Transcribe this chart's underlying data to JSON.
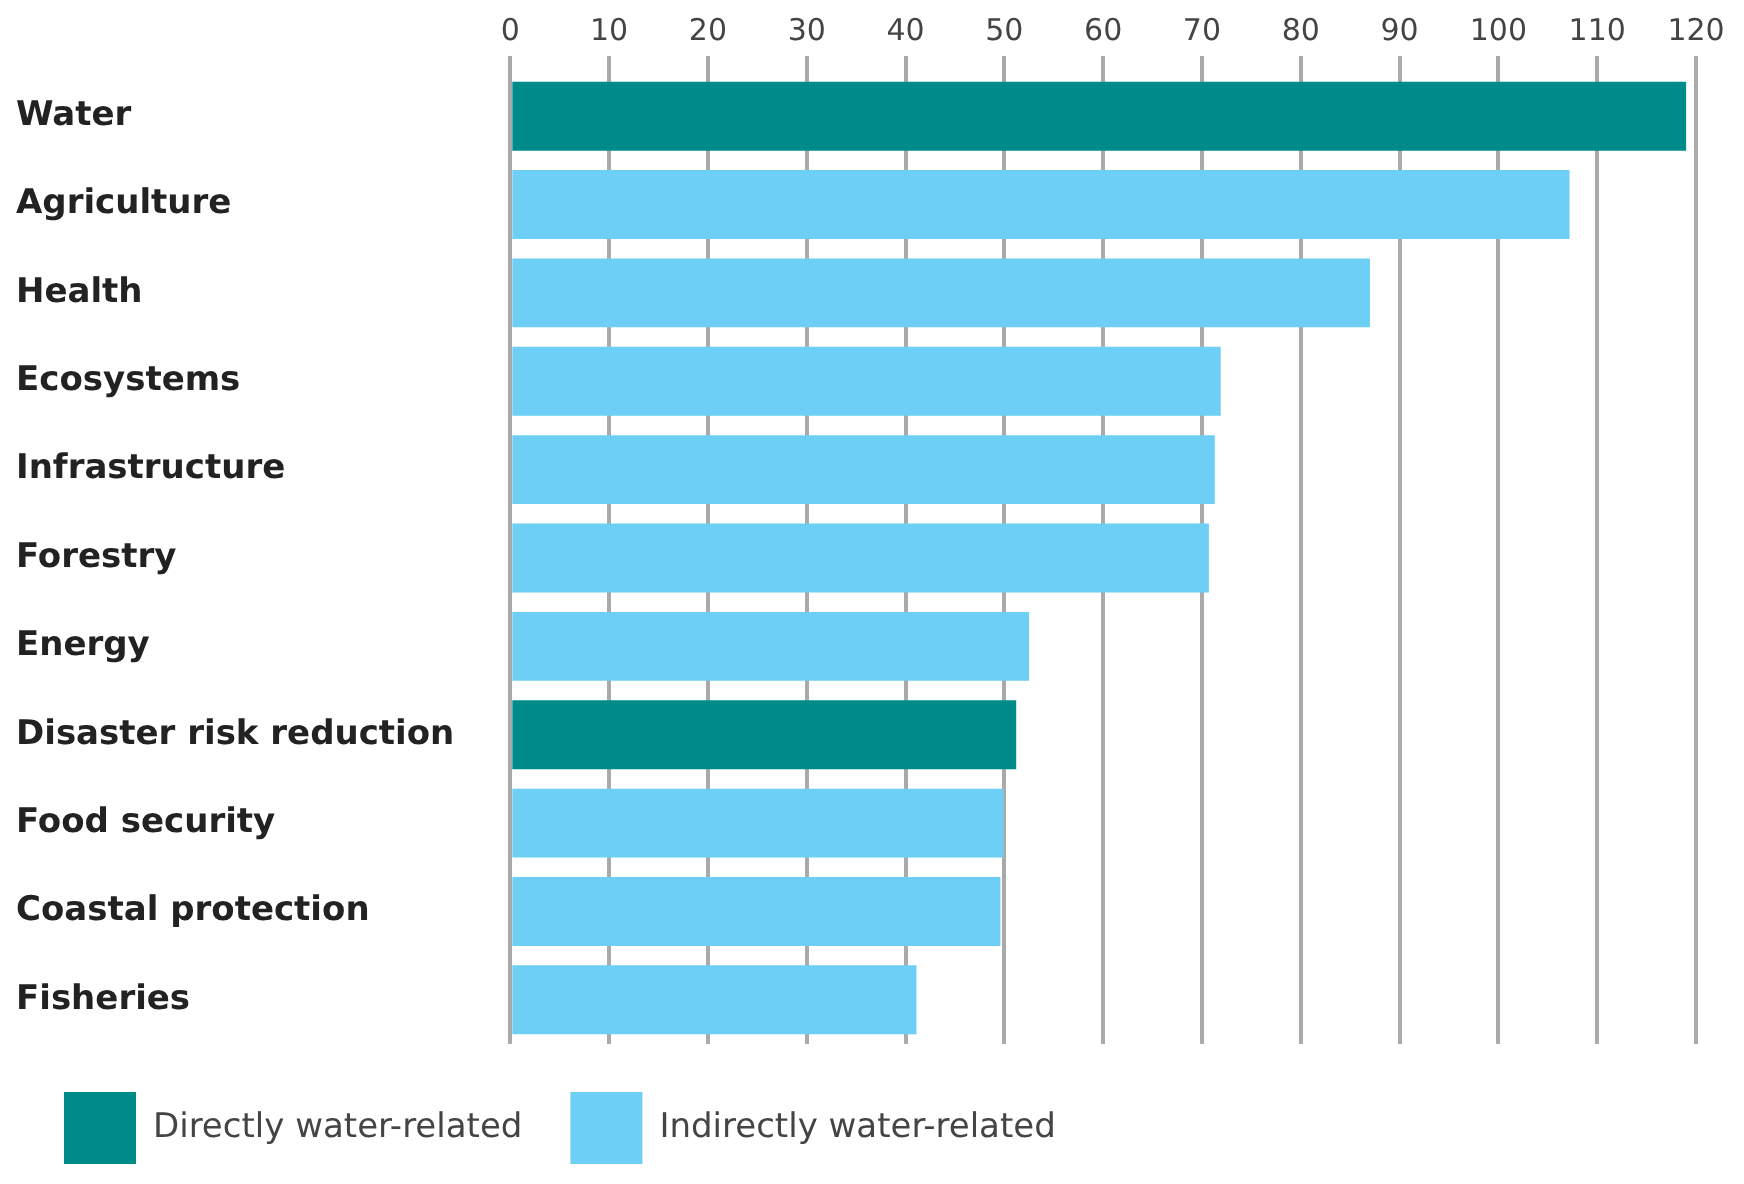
{
  "chart_data": {
    "type": "bar",
    "orientation": "horizontal",
    "stacked": true,
    "categories": [
      "Water",
      "Agriculture",
      "Health",
      "Ecosystems",
      "Infrastructure",
      "Forestry",
      "Energy",
      "Disaster risk reduction",
      "Food security",
      "Coastal protection",
      "Fisheries"
    ],
    "series": [
      {
        "name": "Directly water-related",
        "color": "#008b8b",
        "values": [
          119,
          null,
          null,
          null,
          null,
          null,
          null,
          51.2,
          null,
          null,
          null
        ]
      },
      {
        "name": "Indirectly water-related",
        "color": "#6dcff5",
        "values": [
          null,
          107.2,
          87,
          71.9,
          71.3,
          70.7,
          52.5,
          null,
          49.9,
          49.6,
          41.1
        ]
      }
    ],
    "xlim": [
      0,
      120
    ],
    "xticks": [
      0,
      10,
      20,
      30,
      40,
      50,
      60,
      70,
      80,
      90,
      100,
      110,
      120
    ],
    "grid": "x",
    "legend": "bottom left"
  }
}
